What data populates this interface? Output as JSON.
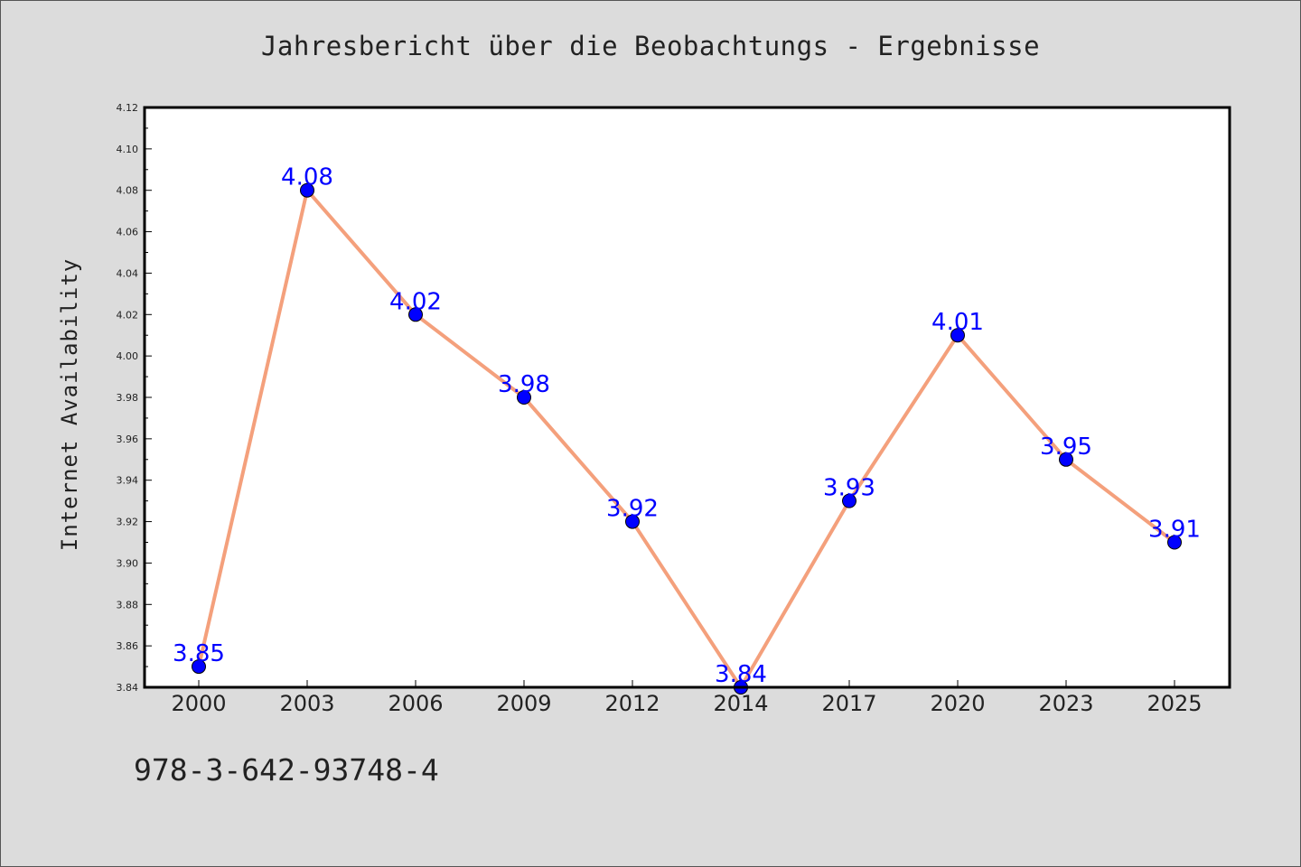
{
  "colors": {
    "background": "#dcdcdc",
    "plot_background": "#ffffff",
    "line": "#f4a07c",
    "marker": "#0000ff",
    "data_label": "#0000ff",
    "text": "#222222"
  },
  "footer": {
    "code": "978-3-642-93748-4"
  },
  "chart_data": {
    "type": "line",
    "title": "Jahresbericht über die Beobachtungs - Ergebnisse",
    "xlabel": "",
    "ylabel": "Internet Availability",
    "categories": [
      "2000",
      "2003",
      "2006",
      "2009",
      "2012",
      "2014",
      "2017",
      "2020",
      "2023",
      "2025"
    ],
    "series": [
      {
        "values": [
          3.85,
          4.08,
          4.02,
          3.98,
          3.92,
          3.84,
          3.93,
          4.01,
          3.95,
          3.91
        ],
        "data_labels": [
          "3.85",
          "4.08",
          "4.02",
          "3.98",
          "3.92",
          "3.84",
          "3.93",
          "4.01",
          "3.95",
          "3.91"
        ]
      }
    ],
    "ylim": [
      3.84,
      4.12
    ],
    "yticks": [
      "3.84",
      "3.86",
      "3.88",
      "3.90",
      "3.92",
      "3.94",
      "3.96",
      "3.98",
      "4.00",
      "4.02",
      "4.04",
      "4.06",
      "4.08",
      "4.10",
      "4.12"
    ],
    "grid": false,
    "legend": "none"
  }
}
